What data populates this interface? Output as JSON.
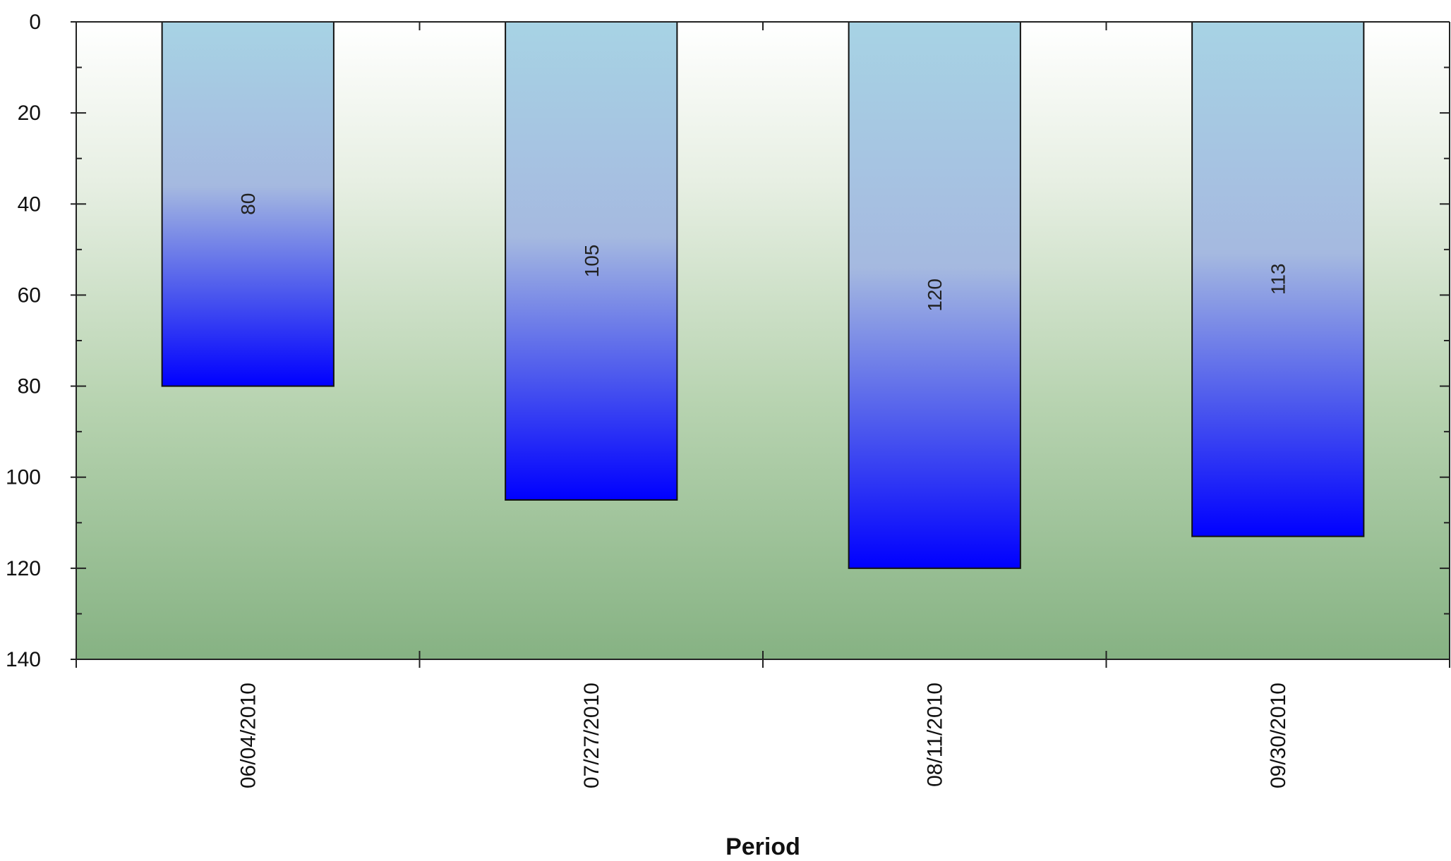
{
  "chart_data": {
    "type": "bar",
    "orientation": "vertical",
    "y_inverted": true,
    "title": "",
    "xlabel": "Period",
    "ylabel": "",
    "categories": [
      "06/04/2010",
      "07/27/2010",
      "08/11/2010",
      "09/30/2010"
    ],
    "series": [
      {
        "values": [
          80,
          105,
          120,
          113
        ]
      }
    ],
    "data_labels": [
      "80",
      "105",
      "120",
      "113"
    ],
    "ylim": [
      0,
      140
    ],
    "y_ticks": [
      "0",
      "20",
      "40",
      "60",
      "80",
      "100",
      "120",
      "140"
    ],
    "grid": false,
    "legend": "none",
    "colors": {
      "plot_bg_top": "#ffffff",
      "plot_bg_bottom": "#86b283",
      "bar_top": "#a7d3e4",
      "bar_mid": "#a5b9e0",
      "bar_bottom": "#0000ff"
    }
  }
}
